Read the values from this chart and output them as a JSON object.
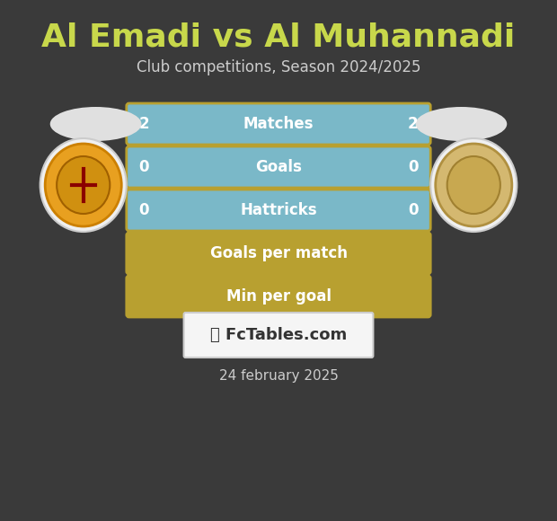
{
  "title": "Al Emadi vs Al Muhannadi",
  "subtitle": "Club competitions, Season 2024/2025",
  "date_text": "24 february 2025",
  "watermark": "FcTables.com",
  "background_color": "#3a3a3a",
  "title_color": "#c8d84b",
  "subtitle_color": "#cccccc",
  "date_color": "#cccccc",
  "rows": [
    {
      "label": "Matches",
      "left_val": "2",
      "right_val": "2",
      "bar_color": "#7ab8c8",
      "border_color": "#b8a030"
    },
    {
      "label": "Goals",
      "left_val": "0",
      "right_val": "0",
      "bar_color": "#7ab8c8",
      "border_color": "#b8a030"
    },
    {
      "label": "Hattricks",
      "left_val": "0",
      "right_val": "0",
      "bar_color": "#7ab8c8",
      "border_color": "#b8a030"
    },
    {
      "label": "Goals per match",
      "left_val": "",
      "right_val": "",
      "bar_color": "#b8a030",
      "border_color": "#b8a030"
    },
    {
      "label": "Min per goal",
      "left_val": "",
      "right_val": "",
      "bar_color": "#b8a030",
      "border_color": "#b8a030"
    }
  ],
  "ellipse_color_left": "#e0e0e0",
  "ellipse_color_right": "#e0e0e0",
  "logo_circle_color_left": "#f0f0f0",
  "logo_circle_color_right": "#f0f0f0",
  "watermark_bg": "#f5f5f5",
  "watermark_border": "#cccccc"
}
